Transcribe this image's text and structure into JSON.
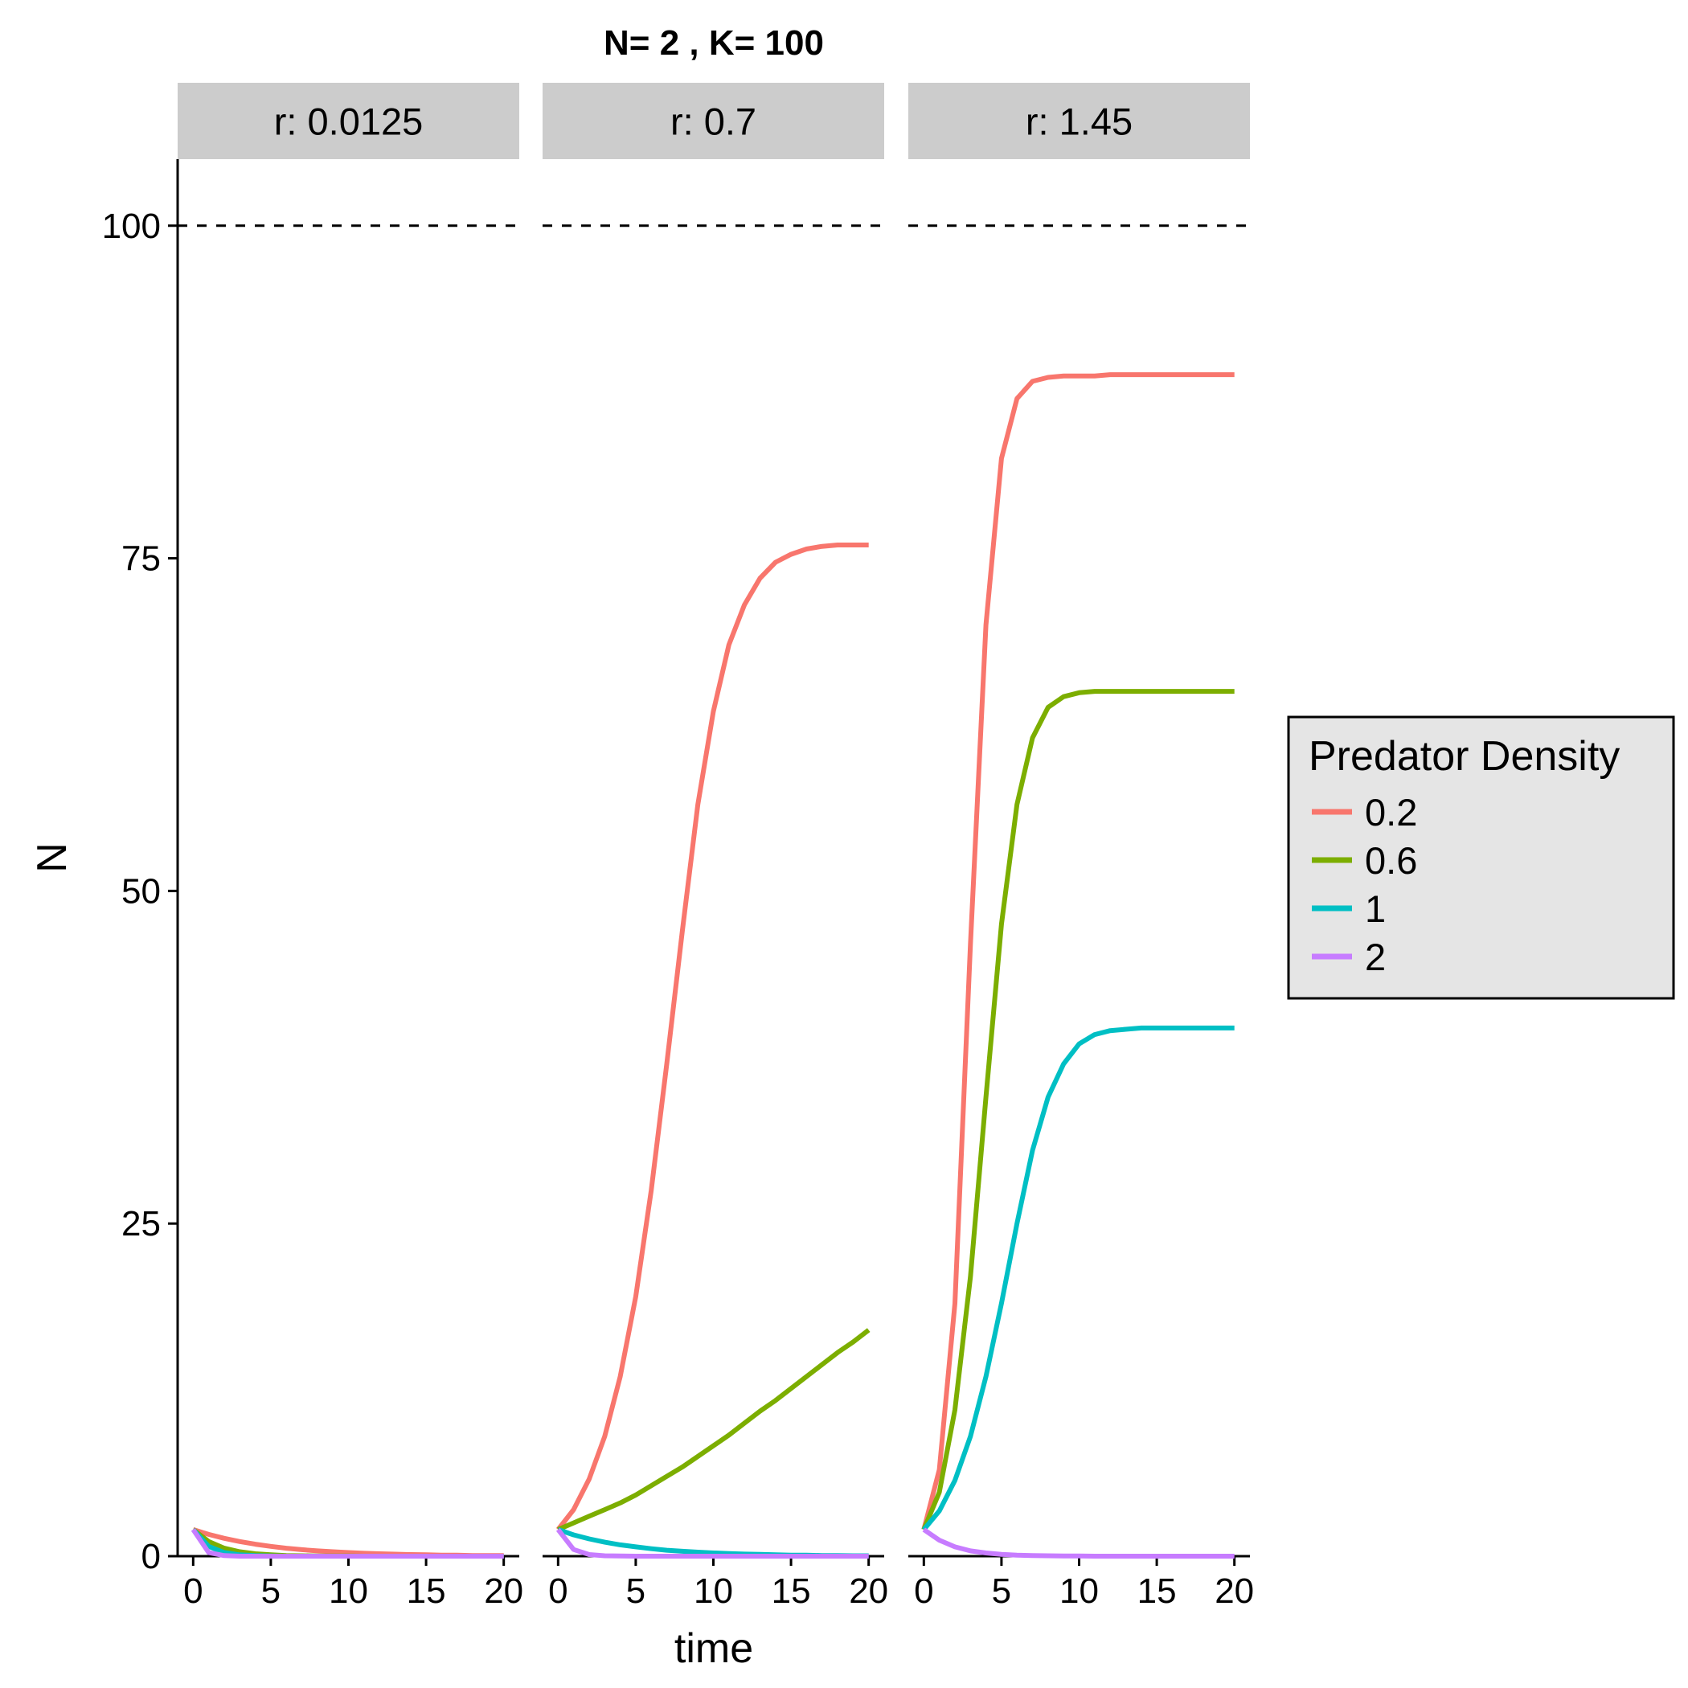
{
  "chart_data": {
    "type": "line",
    "title": "N= 2 , K= 100",
    "xlabel": "time",
    "ylabel": "N",
    "xlim": [
      -1,
      21
    ],
    "ylim": [
      0,
      105
    ],
    "x_ticks": [
      0,
      5,
      10,
      15,
      20
    ],
    "y_ticks": [
      0,
      25,
      50,
      75,
      100
    ],
    "y_tick_labels": [
      "0",
      "25",
      "50",
      "75",
      "100"
    ],
    "reference_line": {
      "y": 100,
      "style": "dashed"
    },
    "grid": false,
    "legend": {
      "title": "Predator Density",
      "position": "right",
      "entries": [
        "0.2",
        "0.6",
        "1",
        "2"
      ]
    },
    "colors": {
      "0.2": "#F8766D",
      "0.6": "#7CAE00",
      "1": "#00BFC4",
      "2": "#C77CFF"
    },
    "x": [
      0,
      1,
      2,
      3,
      4,
      5,
      6,
      7,
      8,
      9,
      10,
      11,
      12,
      13,
      14,
      15,
      16,
      17,
      18,
      19,
      20
    ],
    "panels": [
      {
        "label": "r: 0.0125",
        "series": [
          {
            "name": "0.2",
            "values": [
              2.0,
              1.64,
              1.34,
              1.1,
              0.9,
              0.74,
              0.6,
              0.49,
              0.4,
              0.33,
              0.27,
              0.22,
              0.18,
              0.15,
              0.12,
              0.1,
              0.08,
              0.07,
              0.05,
              0.04,
              0.04
            ]
          },
          {
            "name": "0.6",
            "values": [
              2.0,
              1.1,
              0.6,
              0.33,
              0.18,
              0.1,
              0.05,
              0.03,
              0.02,
              0.01,
              0.01,
              0,
              0,
              0,
              0,
              0,
              0,
              0,
              0,
              0,
              0
            ]
          },
          {
            "name": "1",
            "values": [
              2.0,
              0.74,
              0.27,
              0.1,
              0.04,
              0.01,
              0,
              0,
              0,
              0,
              0,
              0,
              0,
              0,
              0,
              0,
              0,
              0,
              0,
              0,
              0
            ]
          },
          {
            "name": "2",
            "values": [
              2.0,
              0.27,
              0.04,
              0,
              0,
              0,
              0,
              0,
              0,
              0,
              0,
              0,
              0,
              0,
              0,
              0,
              0,
              0,
              0,
              0,
              0
            ]
          }
        ]
      },
      {
        "label": "r: 0.7",
        "series": [
          {
            "name": "0.2",
            "values": [
              2.0,
              3.5,
              5.8,
              9.0,
              13.5,
              19.5,
              27.5,
              37.0,
              47.0,
              56.5,
              63.5,
              68.5,
              71.5,
              73.5,
              74.7,
              75.3,
              75.7,
              75.9,
              76.0,
              76.0,
              76.0
            ]
          },
          {
            "name": "0.6",
            "values": [
              2.0,
              2.5,
              3.0,
              3.5,
              4.0,
              4.6,
              5.3,
              6.0,
              6.7,
              7.5,
              8.3,
              9.1,
              10.0,
              10.9,
              11.7,
              12.6,
              13.5,
              14.4,
              15.3,
              16.1,
              17.0
            ]
          },
          {
            "name": "1",
            "values": [
              2.0,
              1.6,
              1.3,
              1.05,
              0.85,
              0.7,
              0.56,
              0.45,
              0.37,
              0.3,
              0.24,
              0.2,
              0.16,
              0.13,
              0.1,
              0.08,
              0.07,
              0.05,
              0.04,
              0.03,
              0.03
            ]
          },
          {
            "name": "2",
            "values": [
              2.0,
              0.5,
              0.12,
              0.03,
              0.01,
              0,
              0,
              0,
              0,
              0,
              0,
              0,
              0,
              0,
              0,
              0,
              0,
              0,
              0,
              0,
              0
            ]
          }
        ]
      },
      {
        "label": "r: 1.45",
        "series": [
          {
            "name": "0.2",
            "values": [
              2.0,
              6.5,
              19.0,
              46.0,
              70.0,
              82.5,
              87.0,
              88.3,
              88.6,
              88.7,
              88.7,
              88.7,
              88.8,
              88.8,
              88.8,
              88.8,
              88.8,
              88.8,
              88.8,
              88.8,
              88.8
            ]
          },
          {
            "name": "0.6",
            "values": [
              2.0,
              4.8,
              11.0,
              21.0,
              34.5,
              47.5,
              56.5,
              61.5,
              63.8,
              64.6,
              64.9,
              65.0,
              65.0,
              65.0,
              65.0,
              65.0,
              65.0,
              65.0,
              65.0,
              65.0,
              65.0
            ]
          },
          {
            "name": "1",
            "values": [
              2.0,
              3.4,
              5.7,
              9.0,
              13.5,
              19.0,
              25.0,
              30.5,
              34.5,
              37.0,
              38.5,
              39.2,
              39.5,
              39.6,
              39.7,
              39.7,
              39.7,
              39.7,
              39.7,
              39.7,
              39.7
            ]
          },
          {
            "name": "2",
            "values": [
              2.0,
              1.2,
              0.7,
              0.4,
              0.24,
              0.14,
              0.08,
              0.05,
              0.03,
              0.02,
              0.01,
              0,
              0,
              0,
              0,
              0,
              0,
              0,
              0,
              0,
              0
            ]
          }
        ]
      }
    ]
  }
}
